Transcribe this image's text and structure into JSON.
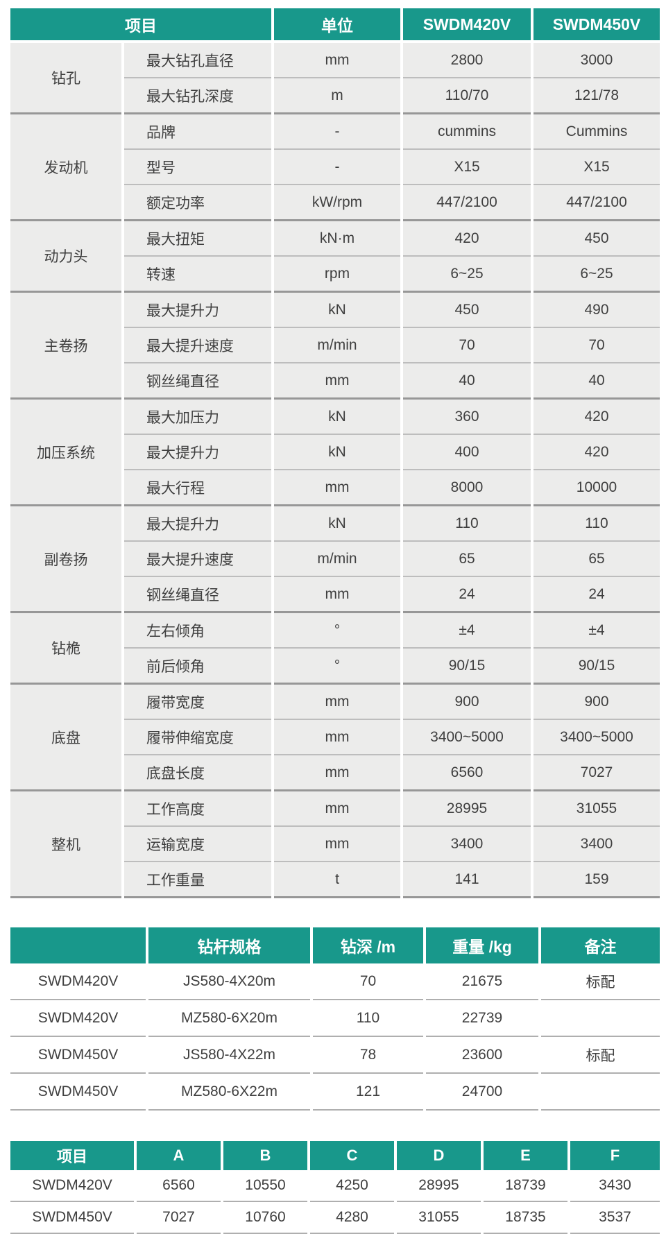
{
  "theme": {
    "accent": "#18988B",
    "cell_bg": "#ECECEB",
    "text": "#3F3F3F",
    "header_text": "#FFFFFF",
    "section_line": "#979797",
    "row_line": "#BDBDBD"
  },
  "spec_table": {
    "header": {
      "item": "项目",
      "unit": "单位",
      "models": [
        "SWDM420V",
        "SWDM450V"
      ]
    },
    "groups": [
      {
        "name": "钻孔",
        "rows": [
          [
            "最大钻孔直径",
            "mm",
            "2800",
            "3000"
          ],
          [
            "最大钻孔深度",
            "m",
            "110/70",
            "121/78"
          ]
        ]
      },
      {
        "name": "发动机",
        "rows": [
          [
            "品牌",
            "-",
            "cummins",
            "Cummins"
          ],
          [
            "型号",
            "-",
            "X15",
            "X15"
          ],
          [
            "额定功率",
            "kW/rpm",
            "447/2100",
            "447/2100"
          ]
        ]
      },
      {
        "name": "动力头",
        "rows": [
          [
            "最大扭矩",
            "kN·m",
            "420",
            "450"
          ],
          [
            "转速",
            "rpm",
            "6~25",
            "6~25"
          ]
        ]
      },
      {
        "name": "主卷扬",
        "rows": [
          [
            "最大提升力",
            "kN",
            "450",
            "490"
          ],
          [
            "最大提升速度",
            "m/min",
            "70",
            "70"
          ],
          [
            "钢丝绳直径",
            "mm",
            "40",
            "40"
          ]
        ]
      },
      {
        "name": "加压系统",
        "rows": [
          [
            "最大加压力",
            "kN",
            "360",
            "420"
          ],
          [
            "最大提升力",
            "kN",
            "400",
            "420"
          ],
          [
            "最大行程",
            "mm",
            "8000",
            "10000"
          ]
        ]
      },
      {
        "name": "副卷扬",
        "rows": [
          [
            "最大提升力",
            "kN",
            "110",
            "110"
          ],
          [
            "最大提升速度",
            "m/min",
            "65",
            "65"
          ],
          [
            "钢丝绳直径",
            "mm",
            "24",
            "24"
          ]
        ]
      },
      {
        "name": "钻桅",
        "rows": [
          [
            "左右倾角",
            "°",
            "±4",
            "±4"
          ],
          [
            "前后倾角",
            "°",
            "90/15",
            "90/15"
          ]
        ]
      },
      {
        "name": "底盘",
        "rows": [
          [
            "履带宽度",
            "mm",
            "900",
            "900"
          ],
          [
            "履带伸缩宽度",
            "mm",
            "3400~5000",
            "3400~5000"
          ],
          [
            "底盘长度",
            "mm",
            "6560",
            "7027"
          ]
        ]
      },
      {
        "name": "整机",
        "rows": [
          [
            "工作高度",
            "mm",
            "28995",
            "31055"
          ],
          [
            "运输宽度",
            "mm",
            "3400",
            "3400"
          ],
          [
            "工作重量",
            "t",
            "141",
            "159"
          ]
        ]
      }
    ]
  },
  "pipe_table": {
    "headers": [
      "",
      "钻杆规格",
      "钻深 /m",
      "重量 /kg",
      "备注"
    ],
    "rows": [
      [
        "SWDM420V",
        "JS580-4X20m",
        "70",
        "21675",
        "标配"
      ],
      [
        "SWDM420V",
        "MZ580-6X20m",
        "110",
        "22739",
        ""
      ],
      [
        "SWDM450V",
        "JS580-4X22m",
        "78",
        "23600",
        "标配"
      ],
      [
        "SWDM450V",
        "MZ580-6X22m",
        "121",
        "24700",
        ""
      ]
    ]
  },
  "dim_table": {
    "headers": [
      "项目",
      "A",
      "B",
      "C",
      "D",
      "E",
      "F"
    ],
    "rows": [
      [
        "SWDM420V",
        "6560",
        "10550",
        "4250",
        "28995",
        "18739",
        "3430"
      ],
      [
        "SWDM450V",
        "7027",
        "10760",
        "4280",
        "31055",
        "18735",
        "3537"
      ]
    ]
  }
}
